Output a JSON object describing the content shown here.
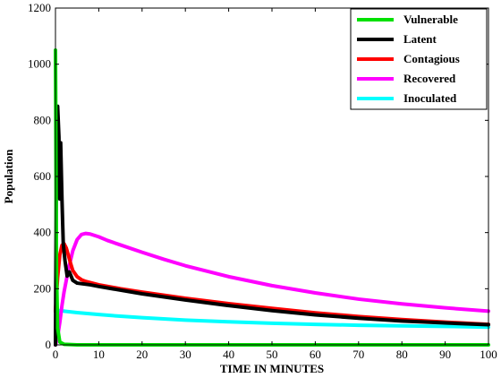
{
  "chart_data": {
    "type": "line",
    "title": "",
    "xlabel": "TIME IN MINUTES",
    "ylabel": "Population",
    "xlim": [
      0,
      100
    ],
    "ylim": [
      0,
      1200
    ],
    "xticks": [
      0,
      10,
      20,
      30,
      40,
      50,
      60,
      70,
      80,
      90,
      100
    ],
    "yticks": [
      0,
      200,
      400,
      600,
      800,
      1000,
      1200
    ],
    "grid": false,
    "legend_position": "top-right",
    "series": [
      {
        "name": "Vulnerable",
        "color": "#00e000",
        "x": [
          0,
          0.05,
          0.12,
          0.25,
          0.5,
          1,
          2,
          5,
          10,
          20,
          50,
          100
        ],
        "y": [
          1050,
          900,
          600,
          250,
          60,
          10,
          2,
          0,
          0,
          0,
          0,
          0
        ]
      },
      {
        "name": "Latent",
        "color": "#000000",
        "x": [
          0,
          0.2,
          0.5,
          0.8,
          1.0,
          1.2,
          1.5,
          1.8,
          2.2,
          2.7,
          3.2,
          4,
          5,
          6,
          7,
          8,
          10,
          15,
          20,
          30,
          40,
          50,
          60,
          70,
          80,
          90,
          100
        ],
        "y": [
          0,
          600,
          850,
          740,
          520,
          720,
          520,
          360,
          300,
          245,
          260,
          230,
          220,
          218,
          216,
          214,
          208,
          195,
          182,
          160,
          140,
          122,
          107,
          95,
          85,
          78,
          72
        ]
      },
      {
        "name": "Contagious",
        "color": "#ff0000",
        "x": [
          0,
          0.5,
          1,
          1.5,
          2,
          2.5,
          3,
          3.5,
          4,
          5,
          6,
          7,
          8,
          10,
          15,
          20,
          30,
          40,
          50,
          60,
          70,
          80,
          90,
          100
        ],
        "y": [
          120,
          240,
          320,
          355,
          360,
          345,
          318,
          290,
          265,
          243,
          232,
          226,
          222,
          214,
          200,
          188,
          166,
          147,
          130,
          114,
          101,
          90,
          81,
          73
        ]
      },
      {
        "name": "Recovered",
        "color": "#ff00ff",
        "x": [
          0,
          0.5,
          1,
          1.5,
          2,
          3,
          4,
          5,
          6,
          7,
          8,
          10,
          12,
          15,
          20,
          25,
          30,
          40,
          50,
          60,
          70,
          80,
          90,
          100
        ],
        "y": [
          0,
          30,
          80,
          140,
          190,
          270,
          335,
          375,
          393,
          397,
          395,
          385,
          372,
          356,
          330,
          305,
          282,
          243,
          211,
          185,
          163,
          146,
          132,
          120
        ]
      },
      {
        "name": "Inoculated",
        "color": "#00ffff",
        "x": [
          0,
          1,
          2,
          5,
          10,
          15,
          20,
          30,
          40,
          50,
          60,
          70,
          80,
          90,
          100
        ],
        "y": [
          120,
          122,
          120,
          115,
          108,
          102,
          97,
          88,
          82,
          77,
          73,
          70,
          68,
          66,
          63
        ]
      }
    ]
  }
}
